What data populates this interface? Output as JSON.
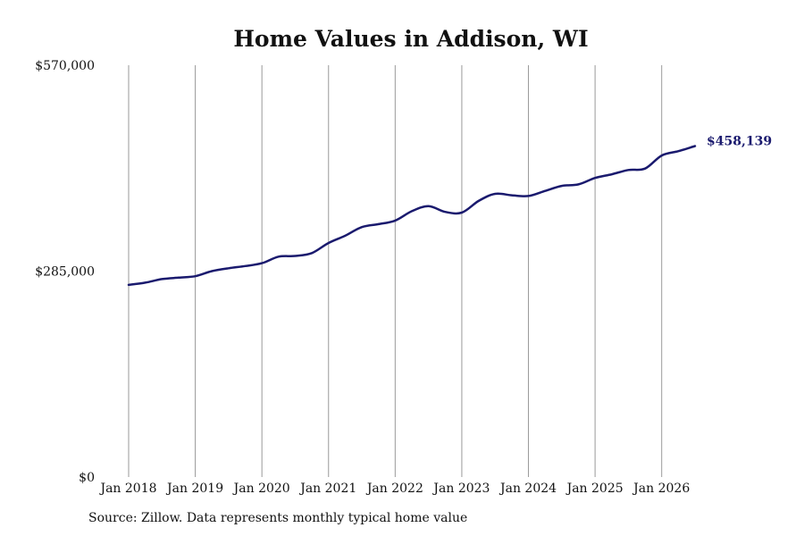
{
  "chart_data": {
    "type": "line",
    "title": "Home Values in Addison, WI",
    "xlabel": "",
    "ylabel": "",
    "x_range": [
      "2018-01",
      "2026-07"
    ],
    "ylim": [
      0,
      570000
    ],
    "x_ticks": [
      "Jan 2018",
      "Jan 2019",
      "Jan 2020",
      "Jan 2021",
      "Jan 2022",
      "Jan 2023",
      "Jan 2024",
      "Jan 2025",
      "Jan 2026"
    ],
    "y_ticks": [
      {
        "value": 0,
        "label": "$0"
      },
      {
        "value": 285000,
        "label": "$285,000"
      },
      {
        "value": 570000,
        "label": "$570,000"
      }
    ],
    "grid": "vertical lines at x ticks",
    "line_color": "#1a1a6e",
    "series": [
      {
        "points": [
          [
            "2018-01",
            266000
          ],
          [
            "2018-04",
            269000
          ],
          [
            "2018-07",
            274000
          ],
          [
            "2018-10",
            276000
          ],
          [
            "2019-01",
            278000
          ],
          [
            "2019-04",
            285000
          ],
          [
            "2019-07",
            289000
          ],
          [
            "2019-10",
            292000
          ],
          [
            "2020-01",
            296000
          ],
          [
            "2020-04",
            305000
          ],
          [
            "2020-07",
            306000
          ],
          [
            "2020-10",
            310000
          ],
          [
            "2021-01",
            324000
          ],
          [
            "2021-04",
            334000
          ],
          [
            "2021-07",
            346000
          ],
          [
            "2021-10",
            350000
          ],
          [
            "2022-01",
            355000
          ],
          [
            "2022-04",
            368000
          ],
          [
            "2022-07",
            375000
          ],
          [
            "2022-10",
            367000
          ],
          [
            "2023-01",
            366000
          ],
          [
            "2023-04",
            382000
          ],
          [
            "2023-07",
            392000
          ],
          [
            "2023-10",
            390000
          ],
          [
            "2024-01",
            389000
          ],
          [
            "2024-04",
            396000
          ],
          [
            "2024-07",
            403000
          ],
          [
            "2024-10",
            405000
          ],
          [
            "2025-01",
            414000
          ],
          [
            "2025-04",
            419000
          ],
          [
            "2025-07",
            425000
          ],
          [
            "2025-10",
            427000
          ],
          [
            "2026-01",
            445000
          ],
          [
            "2026-04",
            451000
          ],
          [
            "2026-07",
            458139
          ]
        ]
      }
    ],
    "end_label": "$458,139",
    "source": "Source: Zillow. Data represents monthly typical home value"
  }
}
